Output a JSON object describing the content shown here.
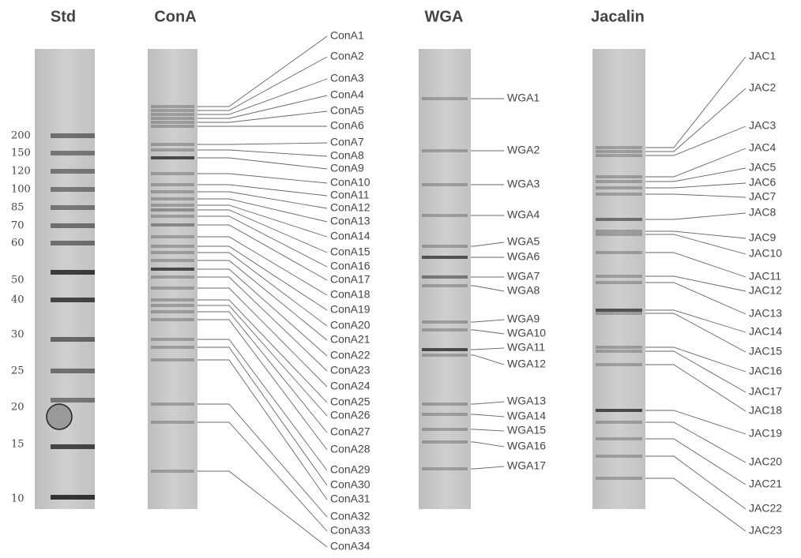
{
  "lanes": [
    {
      "title": "Std",
      "markers": [
        200,
        150,
        120,
        100,
        85,
        70,
        60,
        50,
        40,
        30,
        25,
        20,
        15,
        10
      ]
    },
    {
      "title": "ConA",
      "bands": [
        "ConA1",
        "ConA2",
        "ConA3",
        "ConA4",
        "ConA5",
        "ConA6",
        "ConA7",
        "ConA8",
        "ConA9",
        "ConA10",
        "ConA11",
        "ConA12",
        "ConA13",
        "ConA14",
        "ConA15",
        "ConA16",
        "ConA17",
        "ConA18",
        "ConA19",
        "ConA20",
        "ConA21",
        "ConA22",
        "ConA23",
        "ConA24",
        "ConA25",
        "ConA26",
        "ConA27",
        "ConA28",
        "ConA29",
        "ConA30",
        "ConA31",
        "ConA32",
        "ConA33",
        "ConA34"
      ]
    },
    {
      "title": "WGA",
      "bands": [
        "WGA1",
        "WGA2",
        "WGA3",
        "WGA4",
        "WGA5",
        "WGA6",
        "WGA7",
        "WGA8",
        "WGA9",
        "WGA10",
        "WGA11",
        "WGA12",
        "WGA13",
        "WGA14",
        "WGA15",
        "WGA16",
        "WGA17"
      ]
    },
    {
      "title": "Jacalin",
      "bands": [
        "JAC1",
        "JAC2",
        "JAC3",
        "JAC4",
        "JAC5",
        "JAC6",
        "JAC7",
        "JAC8",
        "JAC9",
        "JAC10",
        "JAC11",
        "JAC12",
        "JAC13",
        "JAC14",
        "JAC15",
        "JAC16",
        "JAC17",
        "JAC18",
        "JAC19",
        "JAC20",
        "JAC21",
        "JAC22",
        "JAC23"
      ]
    }
  ]
}
